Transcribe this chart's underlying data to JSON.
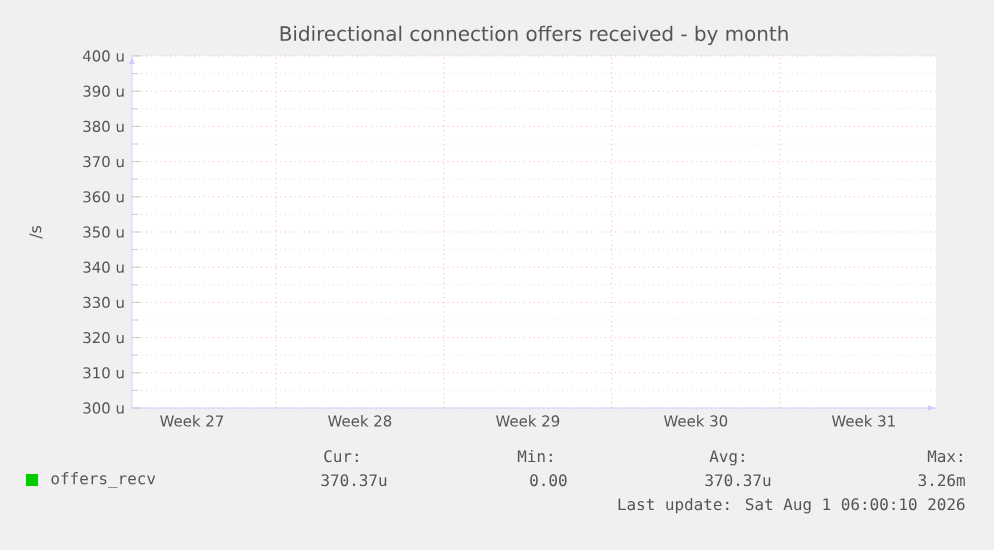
{
  "chart_data": {
    "type": "line",
    "title": "Bidirectional connection offers received - by month",
    "ylabel": "/s",
    "categories": [
      "Week 27",
      "Week 28",
      "Week 29",
      "Week 30",
      "Week 31"
    ],
    "series": [
      {
        "name": "offers_recv",
        "color": "#00cc00",
        "values": [
          null,
          null,
          null,
          null,
          null
        ]
      }
    ],
    "ylim": [
      300,
      400
    ],
    "yticks": [
      {
        "value": 300,
        "label": "300 u"
      },
      {
        "value": 310,
        "label": "310 u"
      },
      {
        "value": 320,
        "label": "320 u"
      },
      {
        "value": 330,
        "label": "330 u"
      },
      {
        "value": 340,
        "label": "340 u"
      },
      {
        "value": 350,
        "label": "350 u"
      },
      {
        "value": 360,
        "label": "360 u"
      },
      {
        "value": 370,
        "label": "370 u"
      },
      {
        "value": 380,
        "label": "380 u"
      },
      {
        "value": 390,
        "label": "390 u"
      },
      {
        "value": 400,
        "label": "400 u"
      }
    ],
    "grid": true,
    "legend": "bottom",
    "annotations": [
      "Cur:",
      "370.37u",
      "Min:",
      "0.00",
      "Avg:",
      "370.37u",
      "Max:",
      "3.26m",
      "Last update: Sat Aug  1 06:00:10 2026"
    ]
  }
}
